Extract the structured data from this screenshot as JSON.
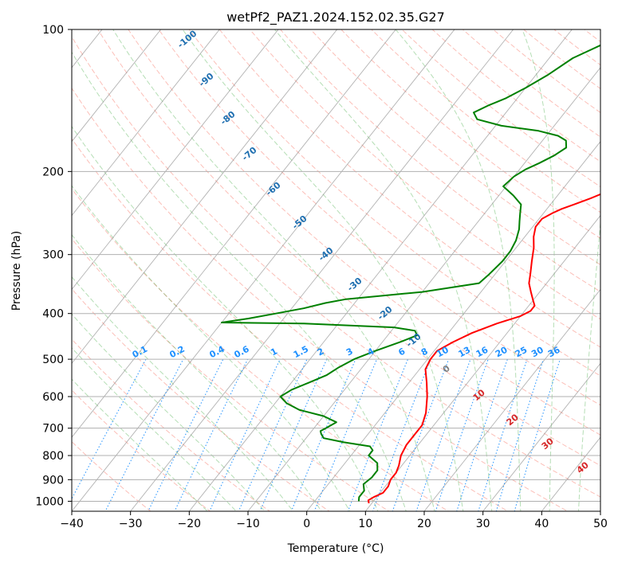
{
  "chart_data": {
    "type": "skew-t",
    "title": "wetPf2_PAZ1.2024.152.02.35.G27",
    "xlabel": "Temperature (°C)",
    "ylabel": "Pressure (hPa)",
    "xlim": [
      -40,
      50
    ],
    "ylim": [
      1050,
      100
    ],
    "y_scale": "log",
    "grid": true,
    "x_ticks": [
      -40,
      -30,
      -20,
      -10,
      0,
      10,
      20,
      30,
      40,
      50
    ],
    "x_tick_labels": [
      "−40",
      "−30",
      "−20",
      "−10",
      "0",
      "10",
      "20",
      "30",
      "40",
      "50"
    ],
    "y_ticks": [
      1000,
      900,
      800,
      700,
      600,
      500,
      400,
      300,
      200,
      100
    ],
    "y_tick_labels": [
      "1000",
      "900",
      "800",
      "700",
      "600",
      "500",
      "400",
      "300",
      "200",
      "100"
    ],
    "series": [
      {
        "role": "temperature",
        "color": "#ff0000",
        "pressure": [
          1010,
          995,
          980,
          960,
          930,
          900,
          870,
          840,
          800,
          760,
          720,
          690,
          650,
          600,
          560,
          525,
          500,
          480,
          460,
          440,
          420,
          405,
          395,
          385,
          375,
          360,
          345,
          330,
          310,
          290,
          275,
          262,
          252,
          245,
          240,
          235,
          228,
          220,
          212,
          205,
          198,
          190,
          182,
          175,
          170,
          165,
          158,
          150,
          140,
          132,
          125,
          118,
          112,
          107,
          103,
          100
        ],
        "temperature": [
          9.5,
          9.0,
          9.5,
          10.5,
          10.5,
          10.0,
          10.0,
          9.5,
          8.5,
          8.0,
          8.0,
          8.0,
          7.0,
          5.0,
          3.0,
          1.0,
          0.5,
          0.5,
          2.0,
          4.0,
          7.0,
          10.0,
          11.0,
          11.0,
          10.0,
          8.5,
          7.0,
          6.0,
          4.5,
          3.0,
          1.5,
          0.5,
          0.5,
          1.5,
          2.5,
          4.0,
          6.0,
          8.0,
          9.5,
          11.0,
          12.0,
          13.0,
          14.5,
          16.0,
          17.0,
          18.0,
          20.0,
          21.5,
          23.0,
          24.0,
          24.5,
          25.5,
          27.0,
          29.0,
          30.5,
          31.5
        ]
      },
      {
        "role": "dewpoint",
        "color": "#008000",
        "pressure": [
          1000,
          980,
          950,
          920,
          890,
          860,
          830,
          800,
          780,
          765,
          750,
          735,
          720,
          710,
          700,
          690,
          680,
          660,
          640,
          620,
          600,
          580,
          560,
          540,
          520,
          500,
          480,
          460,
          445,
          435,
          428,
          420,
          418,
          410,
          400,
          390,
          380,
          373,
          360,
          345,
          330,
          310,
          295,
          280,
          265,
          255,
          245,
          235,
          225,
          215,
          205,
          198,
          192,
          185,
          178,
          172,
          168,
          164,
          160,
          155,
          150,
          145,
          140,
          133,
          125,
          115,
          108,
          100
        ],
        "temperature": [
          7.5,
          7.0,
          7.0,
          6.0,
          6.5,
          6.5,
          5.5,
          3.0,
          3.0,
          2.0,
          -3.0,
          -7.0,
          -8.0,
          -8.5,
          -8.0,
          -7.5,
          -7.0,
          -10.0,
          -15.0,
          -18.0,
          -20.0,
          -19.0,
          -17.0,
          -15.0,
          -14.0,
          -12.5,
          -10.0,
          -7.0,
          -5.0,
          -6.0,
          -10.0,
          -26.0,
          -40.0,
          -36.0,
          -32.0,
          -28.0,
          -25.0,
          -22.0,
          -10.0,
          -1.5,
          -1.0,
          -0.5,
          -0.5,
          -1.0,
          -2.0,
          -3.0,
          -4.0,
          -5.0,
          -7.5,
          -10.5,
          -10.0,
          -9.0,
          -7.5,
          -6.0,
          -5.0,
          -6.0,
          -8.0,
          -12.0,
          -19.0,
          -24.0,
          -25.5,
          -24.0,
          -22.0,
          -20.0,
          -18.0,
          -16.0,
          -13.0,
          -11.0
        ]
      }
    ],
    "dry_adiabat_labels": [
      "-100",
      "-90",
      "-80",
      "-70",
      "-60",
      "-50",
      "-40",
      "-30",
      "-20",
      "-10"
    ],
    "mixing_ratio_labels": [
      "0.1",
      "0.2",
      "0.4",
      "0.6",
      "1",
      "1.5",
      "2",
      "3",
      "4",
      "6",
      "8",
      "10",
      "13",
      "16",
      "20",
      "25",
      "30",
      "36"
    ],
    "moist_adiabat_labels": [
      "0",
      "10",
      "20",
      "30",
      "40"
    ],
    "colors": {
      "temperature": "#ff0000",
      "dewpoint": "#008000",
      "dry_adiabat": "#fa8072",
      "moist_adiabat": "#2ca02c",
      "mixing_ratio": "#1e90ff",
      "isotherm": "#808080",
      "grid": "#b0b0b0",
      "dry_label": "#1f6fb0",
      "moist_label": "#d62728"
    }
  }
}
